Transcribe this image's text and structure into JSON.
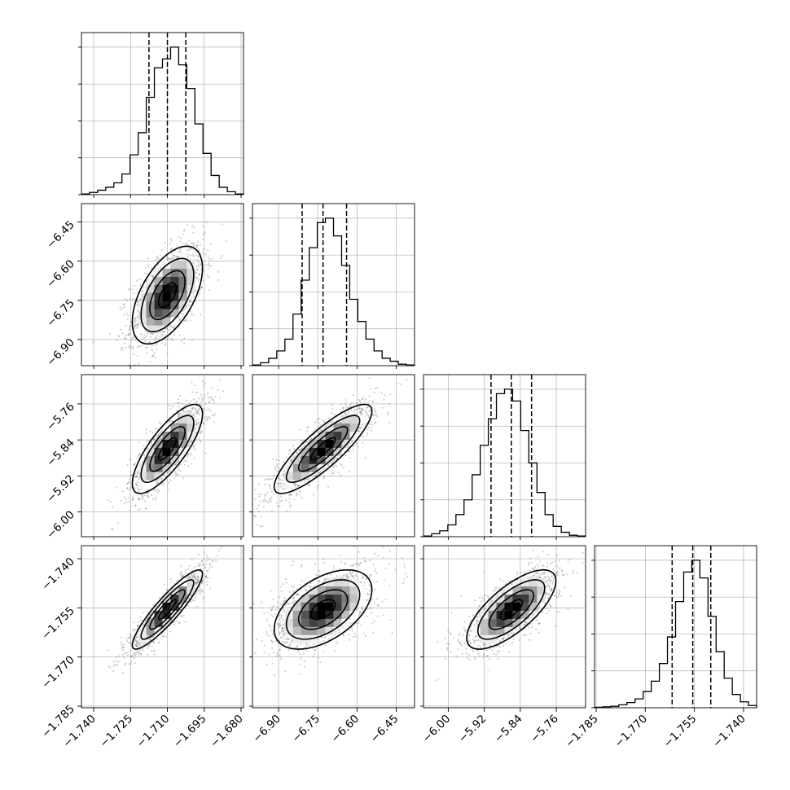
{
  "chart_data": {
    "type": "corner",
    "grid": true,
    "params": [
      {
        "range": [
          -1.745,
          -1.679
        ],
        "ticks": [
          "−1.740",
          "−1.725",
          "−1.710",
          "−1.695",
          "−1.680"
        ],
        "tick_values": [
          -1.74,
          -1.725,
          -1.71,
          -1.695,
          -1.68
        ],
        "quantiles": [
          -1.7175,
          -1.71,
          -1.7025
        ],
        "hist": [
          0.005,
          0.015,
          0.03,
          0.05,
          0.08,
          0.14,
          0.27,
          0.42,
          0.66,
          0.86,
          0.92,
          1.0,
          0.88,
          0.72,
          0.48,
          0.28,
          0.13,
          0.05,
          0.02,
          0.005
        ]
      },
      {
        "range": [
          -7.0,
          -6.38
        ],
        "ticks": [
          "−6.90",
          "−6.75",
          "−6.60",
          "−6.45"
        ],
        "tick_values": [
          -6.9,
          -6.75,
          -6.6,
          -6.45
        ],
        "quantiles": [
          -6.81,
          -6.73,
          -6.64
        ],
        "hist": [
          0.005,
          0.02,
          0.05,
          0.1,
          0.18,
          0.35,
          0.58,
          0.8,
          0.97,
          1.0,
          0.88,
          0.68,
          0.45,
          0.3,
          0.18,
          0.1,
          0.05,
          0.03,
          0.01,
          0.005
        ]
      },
      {
        "range": [
          -6.055,
          -5.695
        ],
        "ticks": [
          "−6.00",
          "−5.92",
          "−5.84",
          "−5.76"
        ],
        "tick_values": [
          -6.0,
          -5.92,
          -5.84,
          -5.76
        ],
        "quantiles": [
          -5.905,
          -5.86,
          -5.815
        ],
        "hist": [
          0.005,
          0.02,
          0.04,
          0.08,
          0.15,
          0.25,
          0.42,
          0.62,
          0.8,
          0.97,
          1.0,
          0.92,
          0.72,
          0.5,
          0.3,
          0.15,
          0.07,
          0.03,
          0.01,
          0.005
        ]
      },
      {
        "range": [
          -1.7855,
          -1.736
        ],
        "ticks": [
          "−1.785",
          "−1.770",
          "−1.755",
          "−1.740"
        ],
        "tick_values": [
          -1.785,
          -1.77,
          -1.755,
          -1.74
        ],
        "quantiles": [
          -1.7618,
          -1.7555,
          -1.75
        ],
        "hist": [
          0.003,
          0.006,
          0.01,
          0.02,
          0.035,
          0.06,
          0.11,
          0.18,
          0.3,
          0.48,
          0.72,
          0.92,
          1.0,
          0.88,
          0.62,
          0.38,
          0.2,
          0.09,
          0.04,
          0.015
        ]
      }
    ],
    "means": [
      -1.71,
      -6.73,
      -5.86,
      -1.7555
    ],
    "sds": [
      0.0065,
      0.085,
      0.045,
      0.0055
    ],
    "correlations": [
      [
        1.0,
        0.55,
        0.78,
        0.9
      ],
      [
        0.55,
        1.0,
        0.85,
        0.5
      ],
      [
        0.78,
        0.85,
        1.0,
        0.72
      ],
      [
        0.9,
        0.5,
        0.72,
        1.0
      ]
    ]
  }
}
